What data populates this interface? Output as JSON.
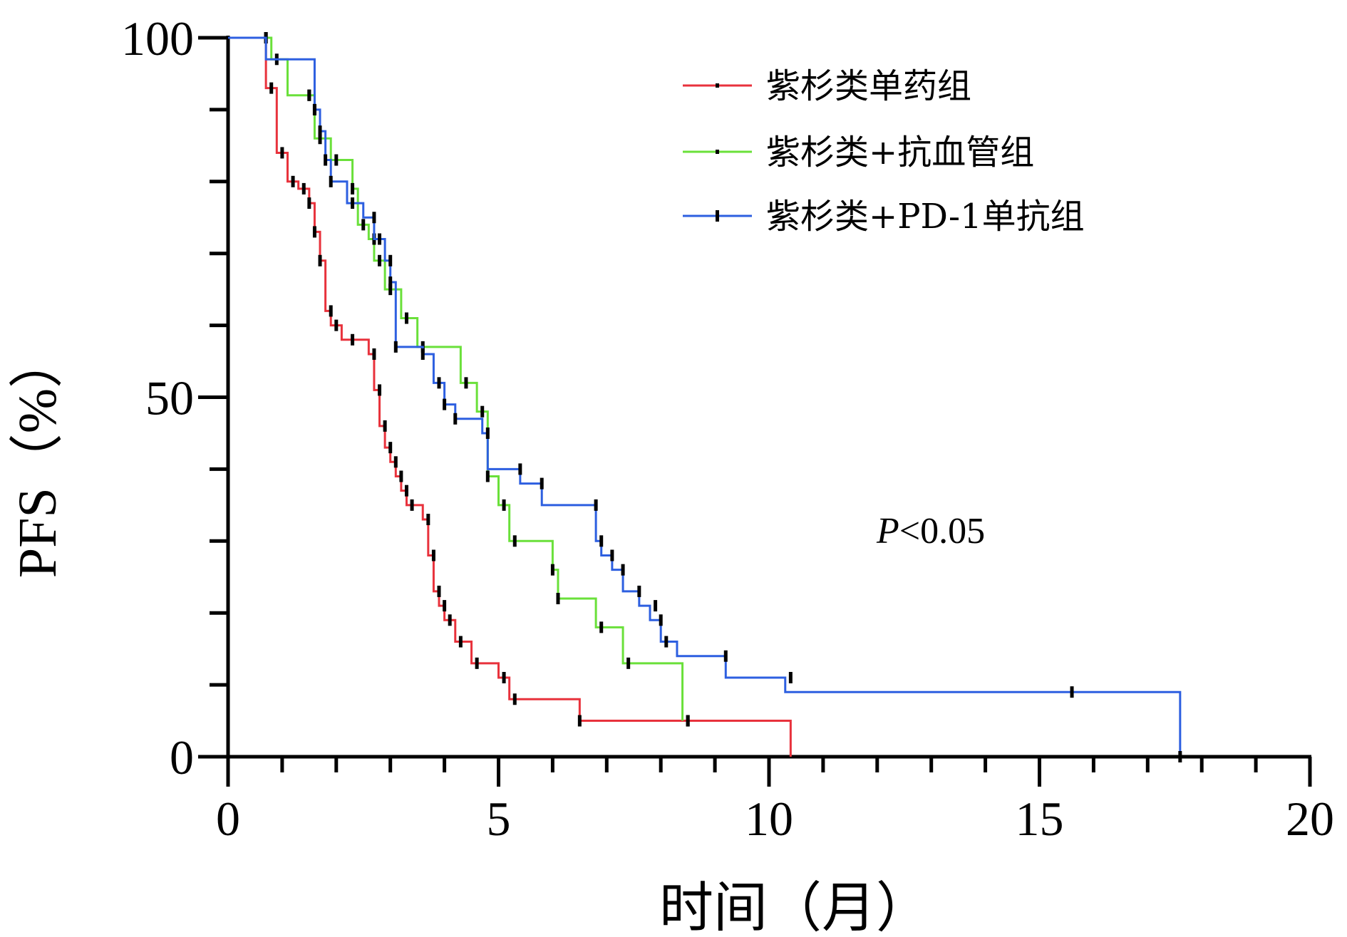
{
  "chart_data": {
    "type": "line",
    "subtype": "kaplan-meier-step",
    "xlabel": "时间（月）",
    "ylabel": "PFS（%）",
    "xlim": [
      0,
      20
    ],
    "ylim": [
      0,
      100
    ],
    "xticks": [
      0,
      5,
      10,
      15,
      20
    ],
    "yticks": [
      0,
      50,
      100
    ],
    "x_minor_step": 1,
    "y_minor_step": 10,
    "legend_position": "top-right",
    "annotation": {
      "italic": "P",
      "rest": "<0.05"
    },
    "series": [
      {
        "name": "紫杉类单药组",
        "color": "#e8323c",
        "steps": [
          [
            0,
            100
          ],
          [
            0.7,
            93
          ],
          [
            0.9,
            84
          ],
          [
            1.1,
            80
          ],
          [
            1.3,
            79
          ],
          [
            1.5,
            77
          ],
          [
            1.6,
            73
          ],
          [
            1.7,
            69
          ],
          [
            1.8,
            62
          ],
          [
            1.9,
            60
          ],
          [
            2.1,
            58
          ],
          [
            2.6,
            56
          ],
          [
            2.7,
            51
          ],
          [
            2.8,
            46
          ],
          [
            2.9,
            43
          ],
          [
            3.0,
            41
          ],
          [
            3.1,
            39
          ],
          [
            3.2,
            37
          ],
          [
            3.3,
            35
          ],
          [
            3.6,
            33
          ],
          [
            3.7,
            28
          ],
          [
            3.8,
            23
          ],
          [
            3.9,
            21
          ],
          [
            4.0,
            19
          ],
          [
            4.2,
            16
          ],
          [
            4.5,
            13
          ],
          [
            5.0,
            11
          ],
          [
            5.2,
            8
          ],
          [
            6.5,
            5
          ],
          [
            10.4,
            0
          ]
        ],
        "censored": [
          [
            0.7,
            100
          ],
          [
            0.8,
            93
          ],
          [
            1.0,
            84
          ],
          [
            1.2,
            80
          ],
          [
            1.4,
            79
          ],
          [
            1.5,
            77
          ],
          [
            1.6,
            73
          ],
          [
            1.7,
            69
          ],
          [
            1.9,
            62
          ],
          [
            2.0,
            60
          ],
          [
            2.3,
            58
          ],
          [
            2.7,
            56
          ],
          [
            2.8,
            51
          ],
          [
            2.9,
            46
          ],
          [
            3.0,
            43
          ],
          [
            3.1,
            41
          ],
          [
            3.2,
            39
          ],
          [
            3.3,
            37
          ],
          [
            3.4,
            35
          ],
          [
            3.7,
            33
          ],
          [
            3.8,
            28
          ],
          [
            3.9,
            23
          ],
          [
            4.0,
            21
          ],
          [
            4.1,
            19
          ],
          [
            4.3,
            16
          ],
          [
            4.6,
            13
          ],
          [
            5.1,
            11
          ],
          [
            5.3,
            8
          ],
          [
            6.5,
            5
          ],
          [
            8.5,
            5
          ]
        ]
      },
      {
        "name": "紫杉类+抗血管组",
        "color": "#6ae03a",
        "steps": [
          [
            0,
            100
          ],
          [
            0.8,
            97
          ],
          [
            1.1,
            92
          ],
          [
            1.6,
            86
          ],
          [
            1.9,
            83
          ],
          [
            2.3,
            79
          ],
          [
            2.4,
            74
          ],
          [
            2.6,
            72
          ],
          [
            2.7,
            69
          ],
          [
            2.9,
            65
          ],
          [
            3.2,
            61
          ],
          [
            3.5,
            57
          ],
          [
            4.3,
            52
          ],
          [
            4.6,
            48
          ],
          [
            4.8,
            39
          ],
          [
            5.0,
            35
          ],
          [
            5.2,
            30
          ],
          [
            6.0,
            26
          ],
          [
            6.1,
            22
          ],
          [
            6.8,
            18
          ],
          [
            7.3,
            13
          ],
          [
            8.4,
            5
          ]
        ],
        "censored": [
          [
            0.7,
            100
          ],
          [
            0.9,
            97
          ],
          [
            1.5,
            92
          ],
          [
            1.6,
            90
          ],
          [
            1.7,
            86
          ],
          [
            2.0,
            83
          ],
          [
            2.3,
            79
          ],
          [
            2.5,
            74
          ],
          [
            2.7,
            72
          ],
          [
            2.8,
            69
          ],
          [
            3.0,
            65
          ],
          [
            3.3,
            61
          ],
          [
            3.6,
            57
          ],
          [
            4.4,
            52
          ],
          [
            4.7,
            48
          ],
          [
            4.8,
            39
          ],
          [
            5.1,
            35
          ],
          [
            5.3,
            30
          ],
          [
            6.0,
            26
          ],
          [
            6.1,
            22
          ],
          [
            6.9,
            18
          ],
          [
            7.4,
            13
          ],
          [
            8.5,
            5
          ]
        ]
      },
      {
        "name": "紫杉类+PD-1单抗组",
        "color": "#2d5fe0",
        "steps": [
          [
            0,
            100
          ],
          [
            0.7,
            97
          ],
          [
            1.6,
            90
          ],
          [
            1.7,
            87
          ],
          [
            1.8,
            83
          ],
          [
            1.9,
            80
          ],
          [
            2.2,
            77
          ],
          [
            2.5,
            75
          ],
          [
            2.7,
            72
          ],
          [
            2.9,
            69
          ],
          [
            3.0,
            66
          ],
          [
            3.1,
            57
          ],
          [
            3.6,
            56
          ],
          [
            3.8,
            52
          ],
          [
            4.0,
            49
          ],
          [
            4.2,
            47
          ],
          [
            4.7,
            45
          ],
          [
            4.8,
            40
          ],
          [
            5.4,
            38
          ],
          [
            5.8,
            35
          ],
          [
            6.8,
            30
          ],
          [
            6.9,
            28
          ],
          [
            7.1,
            26
          ],
          [
            7.3,
            23
          ],
          [
            7.6,
            21
          ],
          [
            7.8,
            19
          ],
          [
            8.0,
            16
          ],
          [
            8.3,
            14
          ],
          [
            9.2,
            11
          ],
          [
            10.3,
            9
          ],
          [
            17.6,
            0
          ]
        ],
        "censored": [
          [
            1.5,
            92
          ],
          [
            1.6,
            90
          ],
          [
            1.7,
            87
          ],
          [
            1.8,
            83
          ],
          [
            1.9,
            80
          ],
          [
            2.3,
            77
          ],
          [
            2.7,
            75
          ],
          [
            2.8,
            72
          ],
          [
            3.0,
            69
          ],
          [
            3.0,
            66
          ],
          [
            3.1,
            57
          ],
          [
            3.6,
            56
          ],
          [
            3.9,
            52
          ],
          [
            4.0,
            49
          ],
          [
            4.2,
            47
          ],
          [
            4.8,
            45
          ],
          [
            5.4,
            40
          ],
          [
            5.8,
            38
          ],
          [
            6.8,
            35
          ],
          [
            6.9,
            30
          ],
          [
            7.1,
            28
          ],
          [
            7.3,
            26
          ],
          [
            7.6,
            23
          ],
          [
            7.9,
            21
          ],
          [
            8.0,
            19
          ],
          [
            8.1,
            16
          ],
          [
            9.2,
            14
          ],
          [
            10.4,
            11
          ],
          [
            15.6,
            9
          ],
          [
            17.6,
            0
          ]
        ]
      }
    ]
  }
}
